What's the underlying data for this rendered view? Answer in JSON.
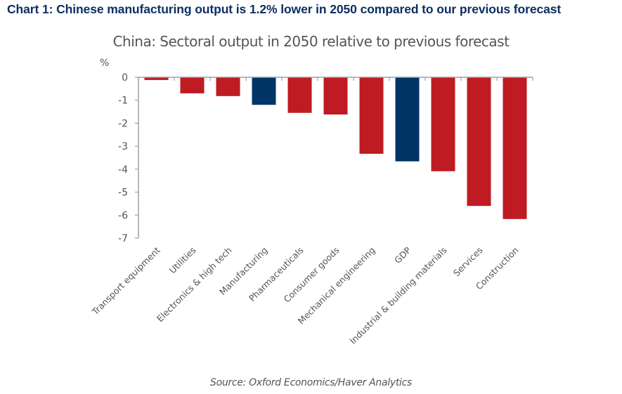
{
  "header": {
    "title": "Chart 1: Chinese manufacturing output is 1.2% lower in 2050 compared to our previous forecast"
  },
  "footer": {
    "source": "Source: Oxford Economics/Haver Analytics"
  },
  "colors": {
    "sector_bar": "#be1b23",
    "highlight_bar": "#003466",
    "axis": "#a0a0a0",
    "text": "#555555",
    "header": "#0d2f63"
  },
  "chart_data": {
    "type": "bar",
    "title": "China: Sectoral output in 2050 relative to previous forecast",
    "ylabel": "%",
    "xlabel": "",
    "ylim": [
      -7,
      0
    ],
    "yticks": [
      0,
      -1,
      -2,
      -3,
      -4,
      -5,
      -6,
      -7
    ],
    "ytick_labels": [
      "0",
      "-1",
      "-2",
      "-3",
      "-4",
      "-5",
      "-6",
      "-7"
    ],
    "grid": false,
    "legend": "none",
    "categories": [
      "Transport equipment",
      "Utilities",
      "Electronics & high tech",
      "Manufacturing",
      "Pharmaceuticals",
      "Consumer goods",
      "Mechanical engineering",
      "GDP",
      "Industrial & building materials",
      "Services",
      "Construction"
    ],
    "values": [
      -0.12,
      -0.7,
      -0.82,
      -1.2,
      -1.55,
      -1.62,
      -3.33,
      -3.66,
      -4.09,
      -5.6,
      -6.17
    ],
    "highlighted": [
      false,
      false,
      false,
      true,
      false,
      false,
      false,
      true,
      false,
      false,
      false
    ]
  }
}
